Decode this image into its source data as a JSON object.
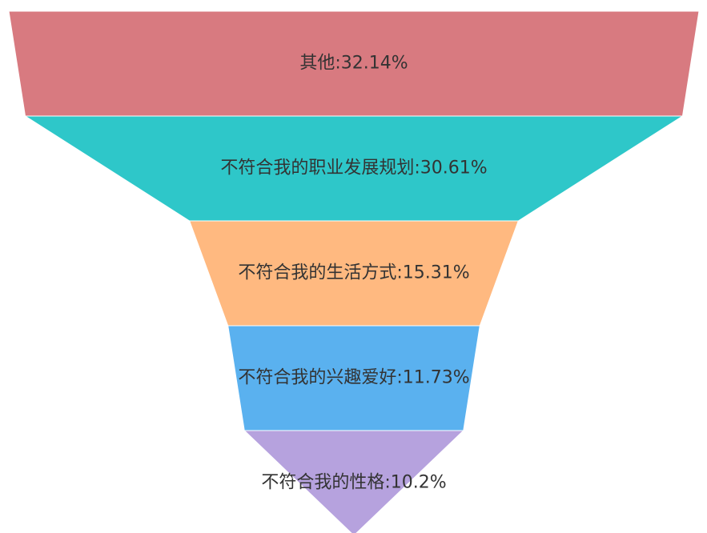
{
  "chart_data": {
    "type": "funnel",
    "values": [
      32.14,
      30.61,
      15.31,
      11.73,
      10.2
    ],
    "value_labels": [
      "其他:32.14%",
      "不符合我的职业发展规划:30.61%",
      "不符合我的生活方式:15.31%",
      "不符合我的兴趣爱好:11.73%",
      "不符合我的性格:10.2%"
    ],
    "colors": [
      "#d87a80",
      "#2ec7c9",
      "#ffb980",
      "#5ab1ef",
      "#b6a2de"
    ]
  }
}
